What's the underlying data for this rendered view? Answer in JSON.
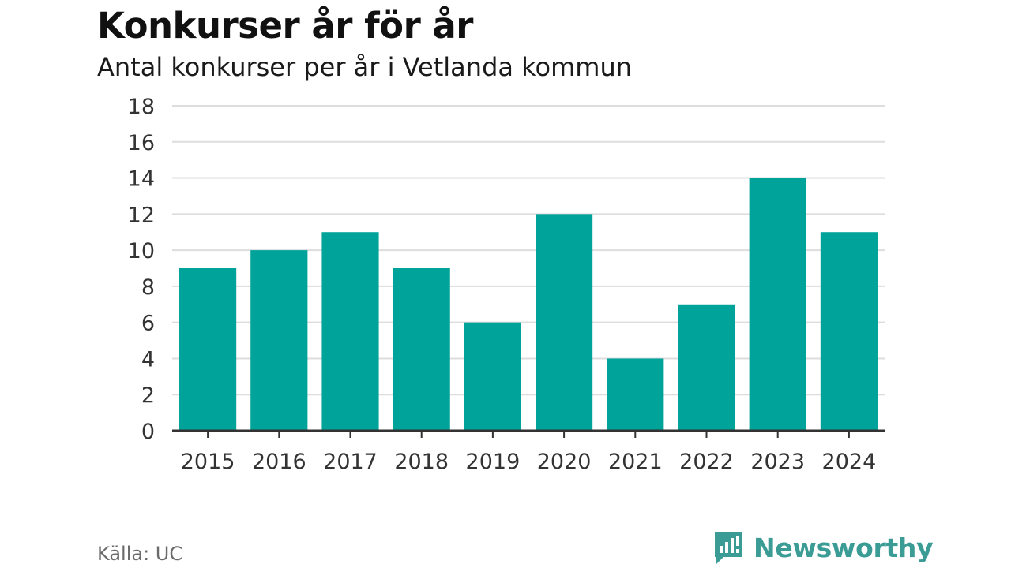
{
  "title": "Konkurser år för år",
  "subtitle": "Antal konkurser per år i Vetlanda kommun",
  "source": "Källa: UC",
  "brand": {
    "name": "Newsworthy",
    "icon": "newsworthy-logo-icon",
    "color": "#3a9c95"
  },
  "colors": {
    "bar": "#00a39a",
    "grid": "#dddddd",
    "axis": "#333333"
  },
  "chart_data": {
    "type": "bar",
    "title": "Konkurser år för år",
    "subtitle": "Antal konkurser per år i Vetlanda kommun",
    "xlabel": "",
    "ylabel": "",
    "categories": [
      "2015",
      "2016",
      "2017",
      "2018",
      "2019",
      "2020",
      "2021",
      "2022",
      "2023",
      "2024"
    ],
    "values": [
      9,
      10,
      11,
      9,
      6,
      12,
      4,
      7,
      14,
      11
    ],
    "ylim": [
      0,
      18
    ],
    "yticks": [
      0,
      2,
      4,
      6,
      8,
      10,
      12,
      14,
      16,
      18
    ],
    "grid": true,
    "legend": "none"
  }
}
